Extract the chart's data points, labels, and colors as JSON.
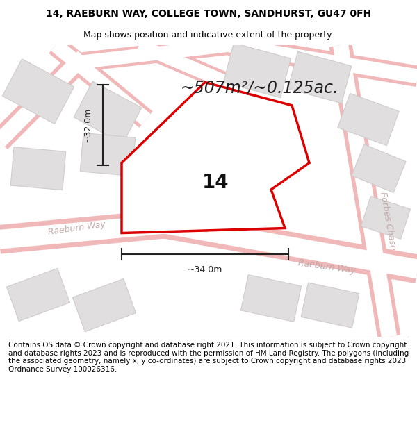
{
  "title": "14, RAEBURN WAY, COLLEGE TOWN, SANDHURST, GU47 0FH",
  "subtitle": "Map shows position and indicative extent of the property.",
  "area_text": "~507m²/~0.125ac.",
  "label_14": "14",
  "dim_vertical": "~32.0m",
  "dim_horizontal": "~34.0m",
  "street_label_left": "Raeburn Way",
  "street_label_right": "Raeburn Way",
  "street_label_far_right": "Forbes Chase",
  "footer": "Contains OS data © Crown copyright and database right 2021. This information is subject to Crown copyright and database rights 2023 and is reproduced with the permission of HM Land Registry. The polygons (including the associated geometry, namely x, y co-ordinates) are subject to Crown copyright and database rights 2023 Ordnance Survey 100026316.",
  "map_bg": "#f2efef",
  "road_color": "#ffffff",
  "road_border_color": "#f0b8b8",
  "building_face": "#e0dede",
  "building_edge": "#d0cccc",
  "plot_color": "#dd0000",
  "dim_color": "#222222",
  "street_color": "#c0a8a8",
  "title_fontsize": 10,
  "subtitle_fontsize": 9,
  "area_fontsize": 17,
  "label_fontsize": 20,
  "dim_fontsize": 9,
  "street_fontsize": 9,
  "footer_fontsize": 7.5
}
